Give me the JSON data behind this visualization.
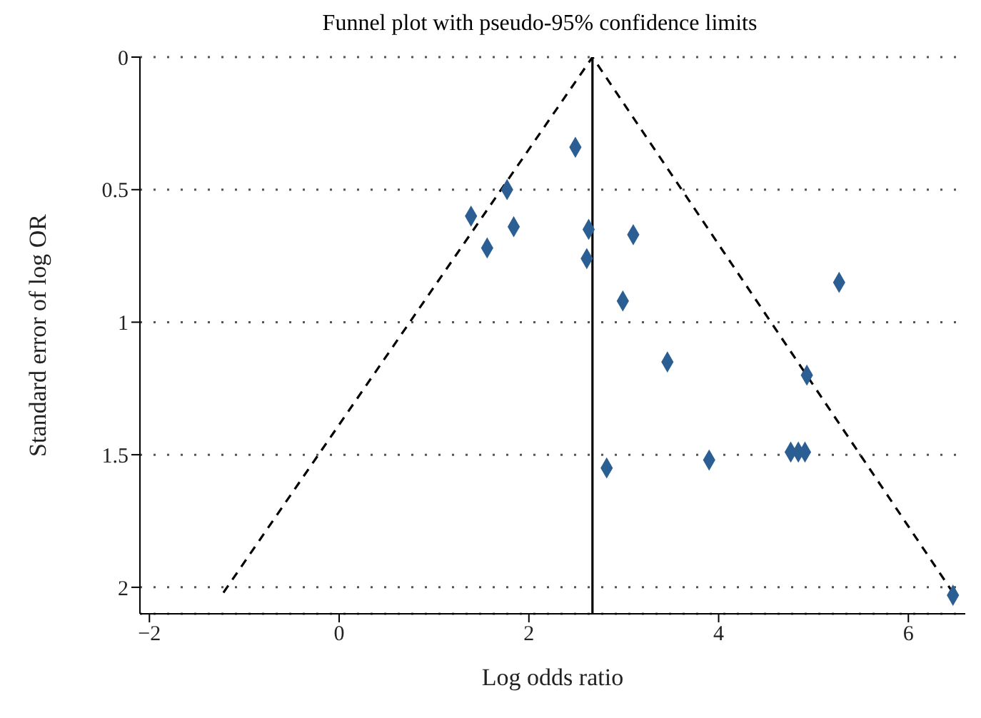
{
  "chart_data": {
    "type": "scatter",
    "title": "Funnel plot with pseudo-95% confidence limits",
    "xlabel": "Log odds ratio",
    "ylabel": "Standard error of log OR",
    "xlim": [
      -2.1,
      6.6
    ],
    "xticks": [
      {
        "value": -2,
        "label": "−2"
      },
      0,
      2,
      4,
      6
    ],
    "ylim": [
      2.1,
      0
    ],
    "yticks": [
      0,
      0.5,
      1,
      1.5,
      2
    ],
    "grid": "y",
    "marker": "diamond",
    "series": [
      {
        "color": "#2b5f94",
        "x": [
          2.49,
          1.77,
          1.39,
          1.84,
          1.56,
          2.63,
          2.61,
          3.1,
          5.27,
          2.99,
          3.46,
          4.93,
          2.82,
          3.9,
          4.76,
          4.84,
          4.91,
          6.47
        ],
        "values": [
          0.34,
          0.5,
          0.6,
          0.64,
          0.72,
          0.65,
          0.76,
          0.67,
          0.85,
          0.92,
          1.15,
          1.2,
          1.55,
          1.52,
          1.49,
          1.49,
          1.49,
          2.03
        ]
      },
      {
        "type": "line",
        "color": "#000000",
        "line_style": "dashed",
        "marker": "none",
        "x": [
          -1.22,
          2.67,
          6.47
        ],
        "values": [
          2.02,
          0,
          2.02
        ]
      }
    ],
    "ref_lines": [
      {
        "axis": "x",
        "value": 2.67,
        "color": "#000000",
        "line_style": "solid"
      }
    ]
  }
}
